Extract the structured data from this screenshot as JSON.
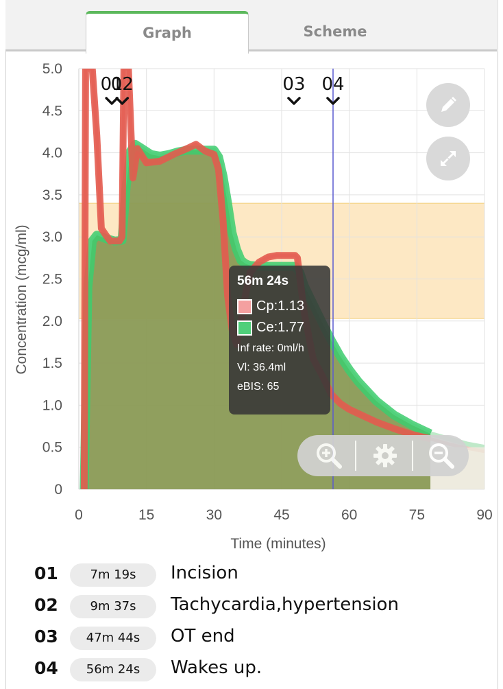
{
  "tabs": [
    {
      "label": "Graph",
      "active": true
    },
    {
      "label": "Scheme",
      "active": false
    }
  ],
  "colors": {
    "cp": "#e35b4f",
    "ce": "#3dcc6e",
    "area": "#8a9a55",
    "target_band": "#fde8c4",
    "marker_line": "#5a5ad0",
    "tab_accent": "#5cb85c"
  },
  "icons": {
    "edit": "pencil-icon",
    "fullscreen": "expand-icon",
    "zoom_in": "zoom-in-icon",
    "settings": "gear-icon",
    "zoom_out": "zoom-out-icon"
  },
  "chart_data": {
    "type": "line",
    "xlabel": "Time (minutes)",
    "ylabel": "Concentration (mcg/ml)",
    "xlim": [
      0,
      90
    ],
    "ylim": [
      0,
      5.0
    ],
    "x_ticks": [
      "0",
      "15",
      "30",
      "45",
      "60",
      "75",
      "90"
    ],
    "y_ticks": [
      "0",
      "0.5",
      "1.0",
      "1.5",
      "2.0",
      "2.5",
      "3.0",
      "3.5",
      "4.0",
      "4.5",
      "5.0"
    ],
    "grid": true,
    "target_band": [
      2.03,
      3.4
    ],
    "current_time_line": 56.4,
    "event_markers": [
      {
        "label": "01",
        "x": 7.32
      },
      {
        "label": "02",
        "x": 9.62
      },
      {
        "label": "03",
        "x": 47.73
      },
      {
        "label": "04",
        "x": 56.4
      }
    ],
    "series": [
      {
        "name": "Cp",
        "x": [
          1.2,
          1.5,
          2,
          3,
          4,
          5,
          6,
          7,
          8,
          9,
          9.6,
          10,
          11,
          12,
          13,
          15,
          18,
          21,
          24,
          26,
          28,
          30,
          31,
          32,
          33,
          34,
          35,
          36,
          37,
          38,
          40,
          42,
          44,
          46,
          48,
          48.5,
          50,
          52,
          54,
          56,
          58,
          60,
          62,
          66,
          70,
          74,
          78,
          82,
          86,
          90
        ],
        "y": [
          0,
          5.0,
          5.0,
          5.0,
          4.2,
          3.1,
          3.02,
          2.95,
          2.95,
          2.95,
          3.0,
          5.0,
          5.0,
          3.7,
          4.05,
          3.88,
          3.9,
          3.98,
          4.05,
          4.1,
          4.02,
          3.98,
          3.8,
          3.2,
          2.3,
          1.9,
          1.72,
          2.0,
          2.32,
          2.58,
          2.7,
          2.76,
          2.78,
          2.78,
          2.78,
          2.75,
          2.1,
          1.55,
          1.35,
          1.13,
          1.02,
          0.95,
          0.9,
          0.8,
          0.72,
          0.65,
          0.6,
          0.54,
          0.49,
          0.45
        ]
      },
      {
        "name": "Ce",
        "x": [
          1.2,
          2,
          3,
          4,
          6,
          8,
          9.6,
          10.5,
          11.5,
          12.5,
          14,
          16,
          18,
          20,
          22,
          24,
          26,
          28,
          30,
          31,
          32,
          33,
          34,
          35,
          36,
          37,
          38,
          40,
          42,
          44,
          46,
          48,
          49,
          50,
          52,
          54,
          56,
          58,
          60,
          62,
          66,
          70,
          74,
          78,
          82,
          86,
          90
        ],
        "y": [
          0,
          2.4,
          2.95,
          3.02,
          2.98,
          2.95,
          2.96,
          3.6,
          4.02,
          4.1,
          4.05,
          3.98,
          3.96,
          3.98,
          4.01,
          4.03,
          4.03,
          4.03,
          4.03,
          3.95,
          3.72,
          3.4,
          3.05,
          2.85,
          2.72,
          2.68,
          2.66,
          2.65,
          2.65,
          2.65,
          2.65,
          2.65,
          2.58,
          2.42,
          2.2,
          1.98,
          1.77,
          1.58,
          1.42,
          1.28,
          1.05,
          0.88,
          0.76,
          0.66,
          0.6,
          0.54,
          0.5
        ]
      }
    ],
    "tooltip": {
      "title": "56m 24s",
      "cp_label": "Cp:1.13",
      "ce_label": "Ce:1.77",
      "inf_rate": "Inf rate: 0ml/h",
      "vi": "Vl: 36.4ml",
      "ebis": "eBIS: 65"
    }
  },
  "events": [
    {
      "num": "01",
      "time": "7m 19s",
      "label": "Incision"
    },
    {
      "num": "02",
      "time": "9m 37s",
      "label": "Tachycardia,hypertension"
    },
    {
      "num": "03",
      "time": "47m 44s",
      "label": "OT end"
    },
    {
      "num": "04",
      "time": "56m 24s",
      "label": "Wakes up."
    }
  ]
}
